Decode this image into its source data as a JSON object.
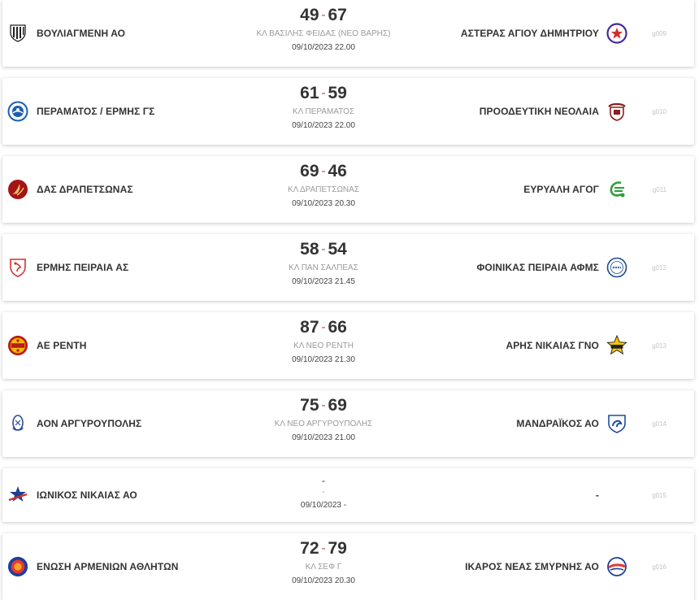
{
  "matches": [
    {
      "home": {
        "name": "ΒΟΥΛΙΑΓΜΕΝΗ ΑΟ",
        "logo": "vouliagmeni-logo"
      },
      "away": {
        "name": "ΑΣΤΕΡΑΣ ΑΓΙΟΥ ΔΗΜΗΤΡΙΟΥ",
        "logo": "asteras-logo"
      },
      "home_score": "49",
      "sep": "-",
      "away_score": "67",
      "venue": "ΚΛ ΒΑΣΙΛΗΣ ΦΕΙΔΑΣ (ΝΕΟ ΒΑΡΗΣ)",
      "datetime": "09/10/2023 22.00",
      "code": "g009"
    },
    {
      "home": {
        "name": "ΠΕΡΑΜΑΤΟΣ / ΕΡΜΗΣ ΓΣ",
        "logo": "peramatos-logo"
      },
      "away": {
        "name": "ΠΡΟΟΔΕΥΤΙΚΗ ΝΕΟΛΑΙΑ",
        "logo": "proodeftiki-logo"
      },
      "home_score": "61",
      "sep": "-",
      "away_score": "59",
      "venue": "ΚΛ ΠΕΡΑΜΑΤΟΣ",
      "datetime": "09/10/2023 22.00",
      "code": "g010"
    },
    {
      "home": {
        "name": "ΔΑΣ ΔΡΑΠΕΤΣΩΝΑΣ",
        "logo": "drapetsonas-logo"
      },
      "away": {
        "name": "ΕΥΡΥΑΛΗ ΑΓΟΓ",
        "logo": "evryali-logo"
      },
      "home_score": "69",
      "sep": "-",
      "away_score": "46",
      "venue": "ΚΛ ΔΡΑΠΕΤΣΩΝΑΣ",
      "datetime": "09/10/2023 20.30",
      "code": "g011"
    },
    {
      "home": {
        "name": "ΕΡΜΗΣ ΠΕΙΡΑΙΑ ΑΣ",
        "logo": "ermis-peiraia-logo"
      },
      "away": {
        "name": "ΦΟΙΝΙΚΑΣ ΠΕΙΡΑΙΑ ΑΦΜΣ",
        "logo": "foinikas-logo"
      },
      "home_score": "58",
      "sep": "-",
      "away_score": "54",
      "venue": "ΚΛ ΠΑΝ ΣΑΛΠΕΑΣ",
      "datetime": "09/10/2023 21.45",
      "code": "g012"
    },
    {
      "home": {
        "name": "ΑΕ ΡΕΝΤΗ",
        "logo": "ae-renti-logo"
      },
      "away": {
        "name": "ΑΡΗΣ ΝΙΚΑΙΑΣ ΓΝΟ",
        "logo": "aris-nikaias-logo"
      },
      "home_score": "87",
      "sep": "-",
      "away_score": "66",
      "venue": "ΚΛ ΝΕΟ ΡΕΝΤΗ",
      "datetime": "09/10/2023 21.30",
      "code": "g013"
    },
    {
      "home": {
        "name": "ΑΟΝ ΑΡΓΥΡΟΥΠΟΛΗΣ",
        "logo": "aon-argyroupolis-logo"
      },
      "away": {
        "name": "ΜΑΝΔΡΑΪΚΟΣ ΑΟ",
        "logo": "mandraikos-logo"
      },
      "home_score": "75",
      "sep": "-",
      "away_score": "69",
      "venue": "ΚΛ ΝΕΟ ΑΡΓΥΡΟΥΠΟΛΗΣ",
      "datetime": "09/10/2023 21.00",
      "code": "g014"
    },
    {
      "home": {
        "name": "ΙΩΝΙΚΟΣ ΝΙΚΑΙΑΣ ΑΟ",
        "logo": "ionikos-logo"
      },
      "away": {
        "name": "-",
        "logo": ""
      },
      "home_score": "",
      "sep": "-",
      "away_score": "",
      "venue": "-",
      "datetime": "09/10/2023 -",
      "code": "g015"
    },
    {
      "home": {
        "name": "ΕΝΩΣΗ ΑΡΜΕΝΙΩΝ ΑΘΛΗΤΩΝ",
        "logo": "enosi-armenion-logo"
      },
      "away": {
        "name": "ΙΚΑΡΟΣ ΝΕΑΣ ΣΜΥΡΝΗΣ ΑΟ",
        "logo": "ikaros-logo"
      },
      "home_score": "72",
      "sep": "-",
      "away_score": "79",
      "venue": "ΚΛ ΣΕΦ Γ",
      "datetime": "09/10/2023 20.30",
      "code": "g016"
    }
  ]
}
